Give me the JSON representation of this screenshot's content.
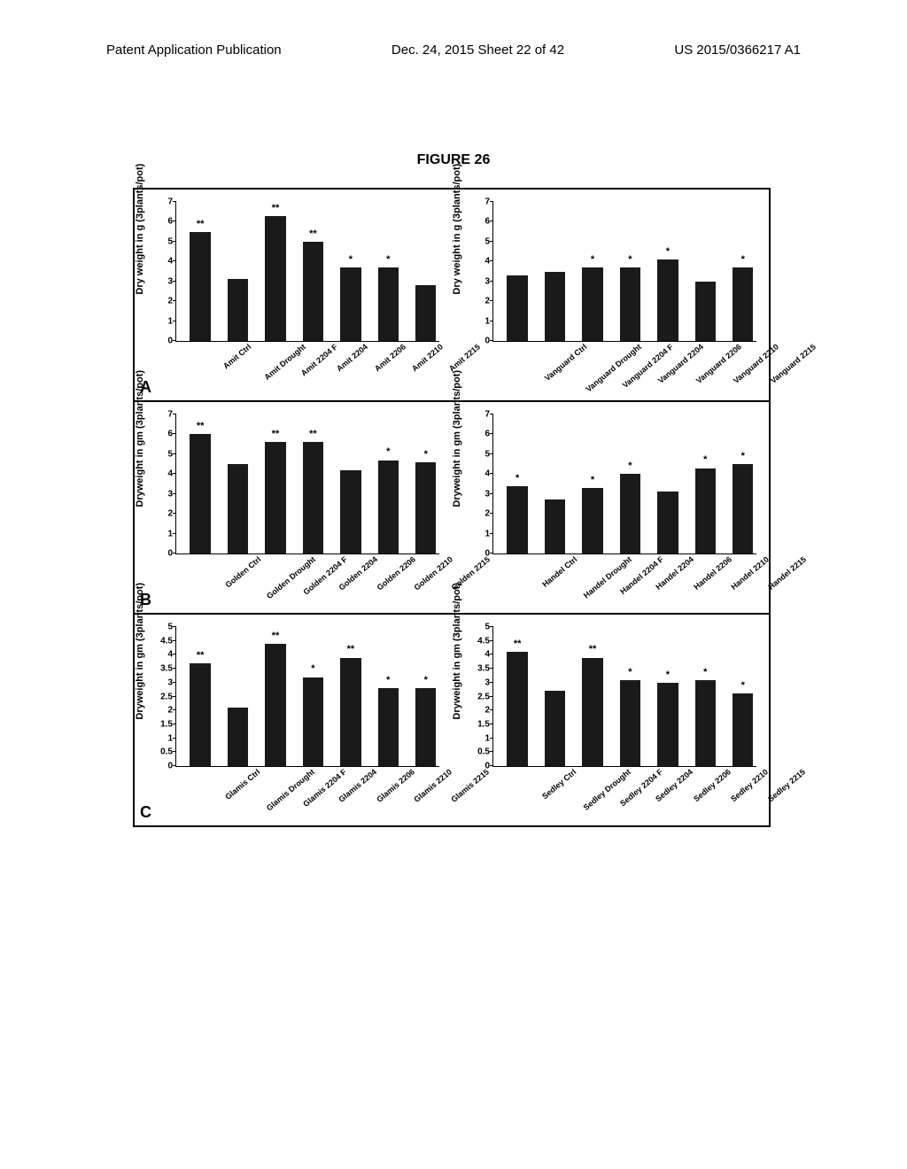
{
  "header": {
    "left": "Patent Application Publication",
    "center": "Dec. 24, 2015  Sheet 22 of 42",
    "right": "US 2015/0366217 A1"
  },
  "figure_title": "FIGURE 26",
  "page_number": "",
  "panels": [
    {
      "label": "A",
      "charts": [
        {
          "ylabel": "Dry weight in g  (3plants/pot)",
          "ylim": [
            0,
            7
          ],
          "ytick_step": 1,
          "bar_color": "#1a1a1a",
          "categories": [
            "Amit Ctrl",
            "Amit Drought",
            "Amit 2204 F",
            "Amit 2204",
            "Amit 2206",
            "Amit 2210",
            "Amit 2215"
          ],
          "values": [
            5.5,
            3.1,
            6.3,
            5.0,
            3.7,
            3.7,
            2.8
          ],
          "sig": [
            "**",
            "",
            "**",
            "**",
            "*",
            "*",
            ""
          ]
        },
        {
          "ylabel": "Dry weight in g (3plants/pot)",
          "ylim": [
            0,
            7
          ],
          "ytick_step": 1,
          "bar_color": "#1a1a1a",
          "categories": [
            "Vanguard Ctrl",
            "Vanguard Drought",
            "Vanguard 2204 F",
            "Vanguard 2204",
            "Vanguard 2206",
            "Vanguard 2210",
            "Vanguard 2215"
          ],
          "values": [
            3.3,
            3.5,
            3.7,
            3.7,
            4.1,
            3.0,
            3.7
          ],
          "sig": [
            "",
            "",
            "*",
            "*",
            "*",
            "",
            "*"
          ]
        }
      ]
    },
    {
      "label": "B",
      "charts": [
        {
          "ylabel": "Dryweight in gm (3plants/pot)",
          "ylim": [
            0,
            7
          ],
          "ytick_step": 1,
          "bar_color": "#1a1a1a",
          "categories": [
            "Golden Ctrl",
            "Golden Drought",
            "Golden 2204 F",
            "Golden 2204",
            "Golden 2206",
            "Golden 2210",
            "Golden 2215"
          ],
          "values": [
            6.0,
            4.5,
            5.6,
            5.6,
            4.2,
            4.7,
            4.6
          ],
          "sig": [
            "**",
            "",
            "**",
            "**",
            "",
            "*",
            "*"
          ]
        },
        {
          "ylabel": "Dryweight in gm (3plants/pot)",
          "ylim": [
            0,
            7
          ],
          "ytick_step": 1,
          "bar_color": "#1a1a1a",
          "categories": [
            "Handel Ctrl",
            "Handel Drought",
            "Handel 2204 F",
            "Handel 2204",
            "Handel 2206",
            "Handel 2210",
            "Handel 2215"
          ],
          "values": [
            3.4,
            2.7,
            3.3,
            4.0,
            3.1,
            4.3,
            4.5
          ],
          "sig": [
            "*",
            "",
            "*",
            "*",
            "",
            "*",
            "*"
          ]
        }
      ]
    },
    {
      "label": "C",
      "charts": [
        {
          "ylabel": "Dryweight in gm (3plants/pot)",
          "ylim": [
            0,
            5
          ],
          "ytick_step": 0.5,
          "bar_color": "#1a1a1a",
          "categories": [
            "Glamis Ctrl",
            "Glamis Drought",
            "Glamis 2204 F",
            "Glamis 2204",
            "Glamis 2206",
            "Glamis 2210",
            "Glamis 2215"
          ],
          "values": [
            3.7,
            2.1,
            4.4,
            3.2,
            3.9,
            2.8,
            2.8
          ],
          "sig": [
            "**",
            "",
            "**",
            "*",
            "**",
            "*",
            "*"
          ]
        },
        {
          "ylabel": "Dryweight in gm (3plants/pot)",
          "ylim": [
            0,
            5
          ],
          "ytick_step": 0.5,
          "bar_color": "#1a1a1a",
          "categories": [
            "Sedley Ctrl",
            "Sedley Drought",
            "Sedley 2204 F",
            "Sedley 2204",
            "Sedley 2206",
            "Sedley 2210",
            "Sedley 2215"
          ],
          "values": [
            4.1,
            2.7,
            3.9,
            3.1,
            3.0,
            3.1,
            2.6
          ],
          "sig": [
            "**",
            "",
            "**",
            "*",
            "*",
            "*",
            "*"
          ]
        }
      ]
    }
  ]
}
